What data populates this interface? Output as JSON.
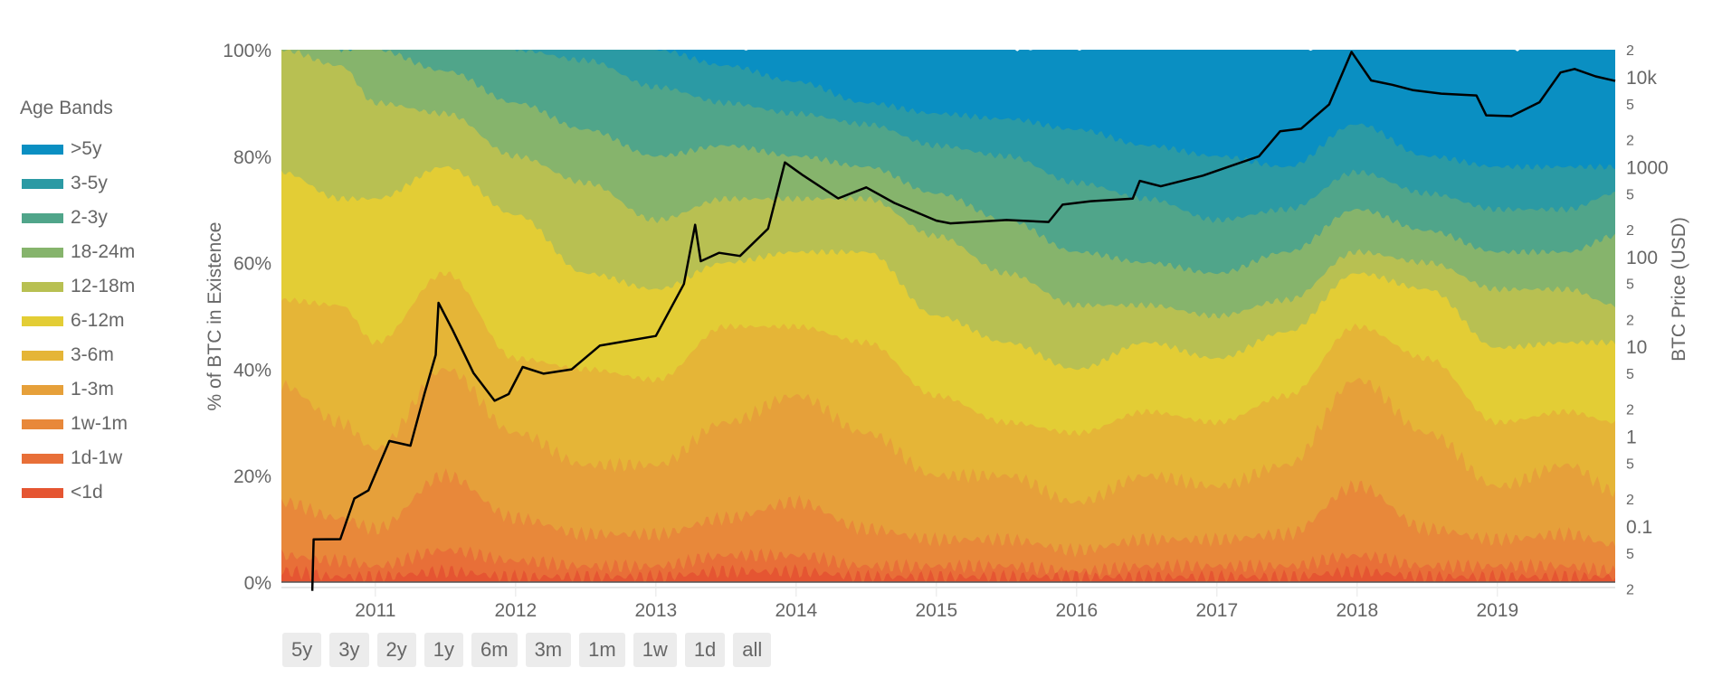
{
  "legend": {
    "title": "Age Bands",
    "items": [
      {
        "label": ">5y",
        "color": "#0a8fc2"
      },
      {
        "label": "3-5y",
        "color": "#2b9aa4"
      },
      {
        "label": "2-3y",
        "color": "#50a58a"
      },
      {
        "label": "18-24m",
        "color": "#86b46c"
      },
      {
        "label": "12-18m",
        "color": "#b8c052"
      },
      {
        "label": "6-12m",
        "color": "#e3cd35"
      },
      {
        "label": "3-6m",
        "color": "#e5b537"
      },
      {
        "label": "1-3m",
        "color": "#e6a03a"
      },
      {
        "label": "1w-1m",
        "color": "#e8883a"
      },
      {
        "label": "1d-1w",
        "color": "#e86f38"
      },
      {
        "label": "<1d",
        "color": "#e55532"
      }
    ]
  },
  "range_buttons": [
    "5y",
    "3y",
    "2y",
    "1y",
    "6m",
    "3m",
    "1m",
    "1w",
    "1d",
    "all"
  ],
  "chart_data": {
    "type": "area",
    "stacked": true,
    "ylabel": "% of BTC in Existence",
    "y2label": "BTC Price (USD)",
    "ylim": [
      0,
      100
    ],
    "yticks": [
      "0%",
      "20%",
      "40%",
      "60%",
      "80%",
      "100%"
    ],
    "y2_scale": "log",
    "y2lim": [
      0.02,
      20000
    ],
    "y2_major_ticks": [
      {
        "v": 0.1,
        "label": "0.1"
      },
      {
        "v": 1,
        "label": "1"
      },
      {
        "v": 10,
        "label": "10"
      },
      {
        "v": 100,
        "label": "100"
      },
      {
        "v": 1000,
        "label": "1000"
      },
      {
        "v": 10000,
        "label": "10k"
      }
    ],
    "y2_minor_ticks": [
      {
        "v": 0.02,
        "label": "2"
      },
      {
        "v": 0.05,
        "label": "5"
      },
      {
        "v": 0.2,
        "label": "2"
      },
      {
        "v": 0.5,
        "label": "5"
      },
      {
        "v": 2,
        "label": "2"
      },
      {
        "v": 5,
        "label": "5"
      },
      {
        "v": 20,
        "label": "2"
      },
      {
        "v": 50,
        "label": "5"
      },
      {
        "v": 200,
        "label": "2"
      },
      {
        "v": 500,
        "label": "5"
      },
      {
        "v": 2000,
        "label": "2"
      },
      {
        "v": 5000,
        "label": "5"
      },
      {
        "v": 20000,
        "label": "2"
      }
    ],
    "xlim": [
      2010.33,
      2019.84
    ],
    "xticks": [
      "2011",
      "2012",
      "2013",
      "2014",
      "2015",
      "2016",
      "2017",
      "2018",
      "2019"
    ],
    "band_order_bottom_to_top": [
      "<1d",
      "1d-1w",
      "1w-1m",
      "1-3m",
      "3-6m",
      "6-12m",
      "12-18m",
      "18-24m",
      "2-3y",
      "3-5y",
      ">5y"
    ],
    "x": [
      2010.33,
      2010.75,
      2011.0,
      2011.5,
      2012.0,
      2012.5,
      2013.0,
      2013.5,
      2014.0,
      2014.5,
      2015.0,
      2015.5,
      2016.0,
      2016.5,
      2017.0,
      2017.5,
      2018.0,
      2018.5,
      2019.0,
      2019.5,
      2019.84
    ],
    "cumulative_top_pct": [
      [
        2,
        5,
        15,
        37,
        53,
        77,
        100,
        100,
        100,
        100,
        100
      ],
      [
        1,
        4,
        12,
        30,
        52,
        72,
        97,
        100,
        100,
        100,
        100
      ],
      [
        1,
        3,
        10,
        25,
        45,
        72,
        90,
        100,
        100,
        100,
        100
      ],
      [
        2,
        6,
        20,
        40,
        58,
        78,
        88,
        96,
        100,
        100,
        100
      ],
      [
        1,
        4,
        12,
        28,
        42,
        69,
        80,
        90,
        100,
        100,
        100
      ],
      [
        1,
        3,
        9,
        22,
        40,
        58,
        75,
        85,
        98,
        100,
        100
      ],
      [
        1,
        3,
        9,
        22,
        38,
        55,
        68,
        80,
        93,
        100,
        100
      ],
      [
        2,
        5,
        12,
        30,
        48,
        60,
        72,
        82,
        90,
        97,
        100
      ],
      [
        2,
        5,
        15,
        35,
        48,
        62,
        72,
        80,
        88,
        94,
        100
      ],
      [
        1,
        3,
        10,
        28,
        45,
        62,
        72,
        78,
        86,
        90,
        100
      ],
      [
        1,
        3,
        8,
        20,
        35,
        50,
        65,
        73,
        82,
        88,
        100
      ],
      [
        1,
        3,
        8,
        20,
        30,
        45,
        58,
        68,
        80,
        87,
        100
      ],
      [
        1,
        2,
        6,
        15,
        28,
        40,
        52,
        62,
        75,
        85,
        100
      ],
      [
        1,
        3,
        8,
        20,
        32,
        45,
        52,
        60,
        72,
        82,
        100
      ],
      [
        1,
        3,
        8,
        18,
        30,
        42,
        50,
        58,
        68,
        80,
        100
      ],
      [
        1,
        3,
        9,
        22,
        35,
        47,
        53,
        62,
        70,
        78,
        100
      ],
      [
        2,
        5,
        18,
        38,
        48,
        58,
        62,
        70,
        77,
        86,
        100
      ],
      [
        1,
        3,
        10,
        28,
        42,
        55,
        60,
        66,
        73,
        80,
        100
      ],
      [
        1,
        3,
        8,
        18,
        30,
        44,
        55,
        62,
        70,
        78,
        100
      ],
      [
        1,
        3,
        9,
        22,
        32,
        45,
        55,
        62,
        70,
        78,
        100
      ],
      [
        1,
        2,
        7,
        17,
        30,
        45,
        52,
        65,
        73,
        78,
        100
      ]
    ],
    "price_series": {
      "name": "BTC Price (USD)",
      "color": "#000000",
      "points": [
        [
          2010.55,
          0.019
        ],
        [
          2010.56,
          0.07
        ],
        [
          2010.75,
          0.07
        ],
        [
          2010.85,
          0.2
        ],
        [
          2010.95,
          0.25
        ],
        [
          2011.1,
          0.9
        ],
        [
          2011.25,
          0.8
        ],
        [
          2011.35,
          3
        ],
        [
          2011.43,
          8
        ],
        [
          2011.45,
          30
        ],
        [
          2011.55,
          15
        ],
        [
          2011.7,
          5
        ],
        [
          2011.85,
          2.5
        ],
        [
          2011.95,
          3
        ],
        [
          2012.05,
          6
        ],
        [
          2012.2,
          5
        ],
        [
          2012.4,
          5.5
        ],
        [
          2012.6,
          10
        ],
        [
          2012.75,
          11
        ],
        [
          2013.0,
          13
        ],
        [
          2013.2,
          50
        ],
        [
          2013.28,
          230
        ],
        [
          2013.32,
          90
        ],
        [
          2013.45,
          110
        ],
        [
          2013.6,
          100
        ],
        [
          2013.8,
          200
        ],
        [
          2013.92,
          1100
        ],
        [
          2014.05,
          800
        ],
        [
          2014.3,
          450
        ],
        [
          2014.5,
          600
        ],
        [
          2014.7,
          400
        ],
        [
          2015.0,
          250
        ],
        [
          2015.1,
          230
        ],
        [
          2015.5,
          250
        ],
        [
          2015.8,
          240
        ],
        [
          2015.9,
          380
        ],
        [
          2016.1,
          420
        ],
        [
          2016.4,
          450
        ],
        [
          2016.45,
          700
        ],
        [
          2016.6,
          600
        ],
        [
          2016.9,
          780
        ],
        [
          2017.1,
          1000
        ],
        [
          2017.3,
          1300
        ],
        [
          2017.45,
          2500
        ],
        [
          2017.6,
          2700
        ],
        [
          2017.8,
          5000
        ],
        [
          2017.96,
          19000
        ],
        [
          2018.1,
          9000
        ],
        [
          2018.25,
          8000
        ],
        [
          2018.4,
          7000
        ],
        [
          2018.6,
          6500
        ],
        [
          2018.85,
          6300
        ],
        [
          2018.92,
          3800
        ],
        [
          2019.1,
          3700
        ],
        [
          2019.3,
          5200
        ],
        [
          2019.45,
          11000
        ],
        [
          2019.55,
          12000
        ],
        [
          2019.7,
          10000
        ],
        [
          2019.84,
          9000
        ]
      ]
    }
  }
}
